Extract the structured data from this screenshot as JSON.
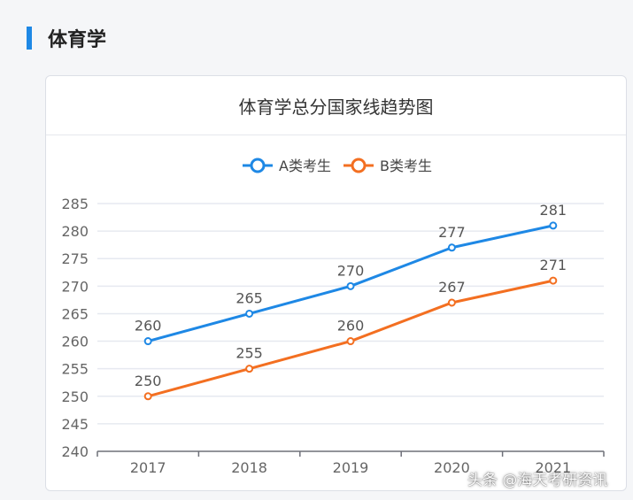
{
  "section": {
    "title": "体育学"
  },
  "chart_data": {
    "type": "line",
    "title": "体育学总分国家线趋势图",
    "categories": [
      "2017",
      "2018",
      "2019",
      "2020",
      "2021"
    ],
    "series": [
      {
        "name": "A类考生",
        "values": [
          260,
          265,
          270,
          277,
          281
        ],
        "color": "#1e88e5"
      },
      {
        "name": "B类考生",
        "values": [
          250,
          255,
          260,
          267,
          271
        ],
        "color": "#f36f21"
      }
    ],
    "yticks": [
      240,
      245,
      250,
      255,
      260,
      265,
      270,
      275,
      280,
      285
    ],
    "ylim": [
      240,
      285
    ],
    "grid": true,
    "legend": "top-center"
  },
  "watermark": "头条 @海天考研资讯"
}
